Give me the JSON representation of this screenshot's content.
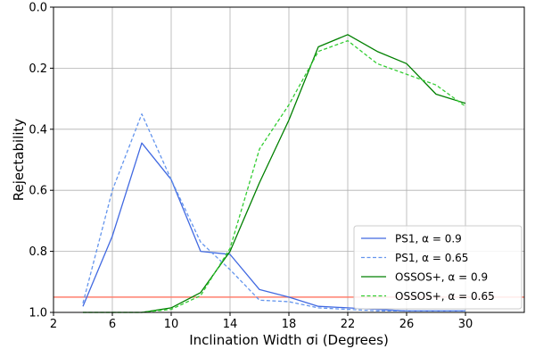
{
  "chart_data": {
    "type": "line",
    "xlabel": "Inclination Width σi (Degrees)",
    "ylabel": "Rejectability",
    "xlim": [
      2,
      34
    ],
    "ylim": [
      1.0,
      0.0
    ],
    "y_inverted": true,
    "xticks": [
      2,
      6,
      10,
      14,
      18,
      22,
      26,
      30
    ],
    "xtick_labels": [
      "2",
      "6",
      "10",
      "14",
      "18",
      "22",
      "26",
      "30"
    ],
    "yticks": [
      0.0,
      0.2,
      0.4,
      0.6,
      0.8,
      1.0
    ],
    "ytick_labels": [
      "0.0",
      "0.2",
      "0.4",
      "0.6",
      "0.8",
      "1.0"
    ],
    "grid": true,
    "legend_position": "lower-right",
    "x": [
      4,
      6,
      8,
      10,
      12,
      14,
      16,
      18,
      20,
      22,
      24,
      26,
      28,
      30
    ],
    "series": [
      {
        "name": "PS1, α = 0.9",
        "color": "#4169e1",
        "dash": "solid",
        "values": [
          0.98,
          0.75,
          0.445,
          0.565,
          0.8,
          0.81,
          0.925,
          0.95,
          0.98,
          0.985,
          0.99,
          0.995,
          0.995,
          0.995
        ]
      },
      {
        "name": "PS1, α = 0.65",
        "color": "#6495ed",
        "dash": "dashed",
        "values": [
          0.97,
          0.6,
          0.35,
          0.565,
          0.77,
          0.86,
          0.96,
          0.965,
          0.985,
          0.99,
          0.995,
          0.995,
          0.995,
          0.995
        ]
      },
      {
        "name": "OSSOS+, α = 0.9",
        "color": "#008000",
        "dash": "solid",
        "values": [
          1.0,
          1.0,
          1.0,
          0.985,
          0.935,
          0.8,
          0.575,
          0.37,
          0.13,
          0.09,
          0.145,
          0.185,
          0.285,
          0.315
        ]
      },
      {
        "name": "OSSOS+, α = 0.65",
        "color": "#32cd32",
        "dash": "dashed",
        "values": [
          1.0,
          1.0,
          1.0,
          0.99,
          0.945,
          0.79,
          0.465,
          0.32,
          0.145,
          0.11,
          0.185,
          0.22,
          0.255,
          0.325
        ]
      }
    ],
    "threshold_line": {
      "y": 0.95,
      "color": "#ff7f6e"
    }
  }
}
